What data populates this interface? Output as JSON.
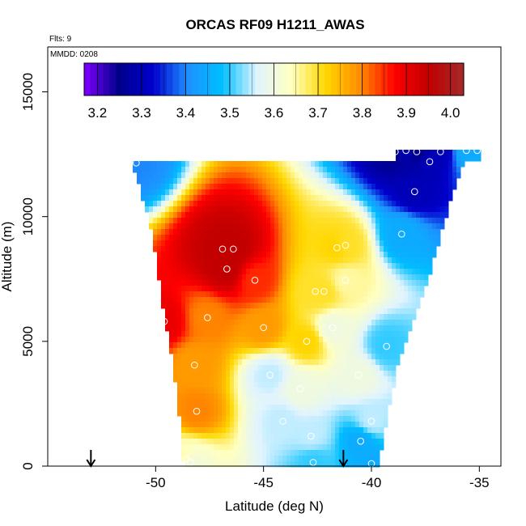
{
  "chart_data": {
    "type": "heatmap",
    "title": "ORCAS RF09 H1211_AWAS",
    "subtitle_flts": "Flts: 9",
    "subtitle_mmdd": "MMDD: 0208",
    "xlabel": "Latitude (deg N)",
    "ylabel": "Altitude (m)",
    "xlim": [
      -55,
      -34
    ],
    "ylim": [
      0,
      16800
    ],
    "x_ticks": [
      "-50",
      "-45",
      "-40",
      "-35"
    ],
    "x_tick_values": [
      -50,
      -45,
      -40,
      -35
    ],
    "y_ticks": [
      "0",
      "5000",
      "10000",
      "15000"
    ],
    "y_tick_values": [
      0,
      5000,
      10000,
      15000
    ],
    "colorbar": {
      "min": 3.17,
      "max": 4.03,
      "tick_labels": [
        "3.2",
        "3.3",
        "3.4",
        "3.5",
        "3.6",
        "3.7",
        "3.8",
        "3.9",
        "4.0"
      ],
      "tick_values": [
        3.2,
        3.3,
        3.4,
        3.5,
        3.6,
        3.7,
        3.8,
        3.9,
        4.0
      ]
    },
    "colormap": [
      "#7f00ff",
      "#00008b",
      "#0000cd",
      "#1e90ff",
      "#00bfff",
      "#e0f4ff",
      "#ffffc0",
      "#ffd700",
      "#ff8c00",
      "#ff0000",
      "#c00000",
      "#a52a2a"
    ],
    "arrows_x": [
      -53,
      -41.3
    ],
    "samples": [
      {
        "lat": -50.9,
        "alt": 12150,
        "v": 3.4
      },
      {
        "lat": -46.4,
        "alt": 8700,
        "v": 3.95
      },
      {
        "lat": -46.9,
        "alt": 8700,
        "v": 3.95
      },
      {
        "lat": -46.7,
        "alt": 7900,
        "v": 3.95
      },
      {
        "lat": -45.4,
        "alt": 7450,
        "v": 3.85
      },
      {
        "lat": -49.6,
        "alt": 5800,
        "v": 3.9
      },
      {
        "lat": -47.6,
        "alt": 5950,
        "v": 3.8
      },
      {
        "lat": -45.0,
        "alt": 5550,
        "v": 3.78
      },
      {
        "lat": -43.0,
        "alt": 5000,
        "v": 3.72
      },
      {
        "lat": -48.2,
        "alt": 4050,
        "v": 3.78
      },
      {
        "lat": -44.7,
        "alt": 3650,
        "v": 3.55
      },
      {
        "lat": -43.3,
        "alt": 3100,
        "v": 3.6
      },
      {
        "lat": -40.6,
        "alt": 3650,
        "v": 3.6
      },
      {
        "lat": -41.8,
        "alt": 5550,
        "v": 3.6
      },
      {
        "lat": -41.2,
        "alt": 8850,
        "v": 3.7
      },
      {
        "lat": -41.6,
        "alt": 8750,
        "v": 3.72
      },
      {
        "lat": -42.2,
        "alt": 7000,
        "v": 3.7
      },
      {
        "lat": -41.2,
        "alt": 7450,
        "v": 3.65
      },
      {
        "lat": -42.6,
        "alt": 7000,
        "v": 3.7
      },
      {
        "lat": -39.3,
        "alt": 4800,
        "v": 3.5
      },
      {
        "lat": -38.6,
        "alt": 9300,
        "v": 3.45
      },
      {
        "lat": -38.0,
        "alt": 11000,
        "v": 3.3
      },
      {
        "lat": -37.3,
        "alt": 12200,
        "v": 3.3
      },
      {
        "lat": -37.9,
        "alt": 12600,
        "v": 3.25
      },
      {
        "lat": -38.4,
        "alt": 12650,
        "v": 3.3
      },
      {
        "lat": -38.9,
        "alt": 12600,
        "v": 3.25
      },
      {
        "lat": -36.8,
        "alt": 12600,
        "v": 3.3
      },
      {
        "lat": -35.6,
        "alt": 12650,
        "v": 3.45
      },
      {
        "lat": -35.1,
        "alt": 12650,
        "v": 3.45
      },
      {
        "lat": -48.1,
        "alt": 2200,
        "v": 3.8
      },
      {
        "lat": -44.1,
        "alt": 1800,
        "v": 3.55
      },
      {
        "lat": -40.0,
        "alt": 1800,
        "v": 3.55
      },
      {
        "lat": -42.8,
        "alt": 1200,
        "v": 3.55
      },
      {
        "lat": -48.6,
        "alt": 300,
        "v": 3.65
      },
      {
        "lat": -48.4,
        "alt": 150,
        "v": 3.6
      },
      {
        "lat": -42.7,
        "alt": 150,
        "v": 3.5
      },
      {
        "lat": -40.5,
        "alt": 1000,
        "v": 3.45
      },
      {
        "lat": -40.0,
        "alt": 100,
        "v": 3.45
      }
    ]
  }
}
